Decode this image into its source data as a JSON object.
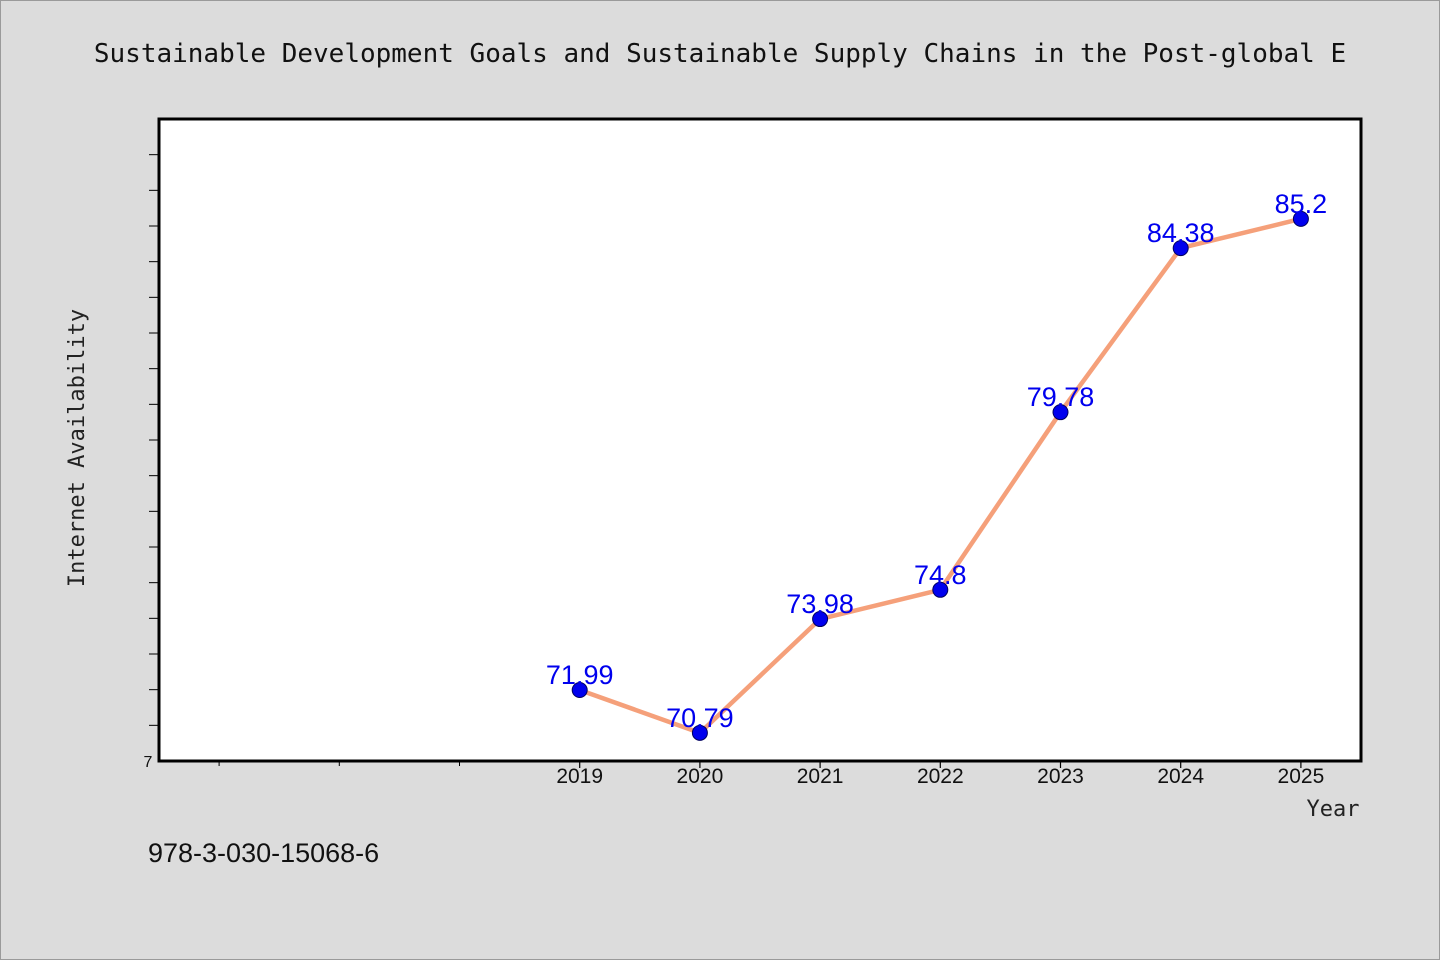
{
  "chart_data": {
    "type": "line",
    "title": "Sustainable Development Goals and Sustainable Supply Chains in the Post-global E",
    "xlabel": "Year",
    "ylabel": "Internet Availability",
    "ymin_label": "7",
    "categories": [
      "2019",
      "2020",
      "2021",
      "2022",
      "2023",
      "2024",
      "2025"
    ],
    "x_range": [
      2015.5,
      2025.5
    ],
    "ylim": [
      70.0,
      88.0
    ],
    "grid": false,
    "series": [
      {
        "values": [
          71.99,
          70.79,
          73.98,
          74.8,
          79.78,
          84.38,
          85.2
        ],
        "point_labels": [
          "71.99",
          "70.79",
          "73.98",
          "74.8",
          "79.78",
          "84.38",
          "85.2"
        ],
        "line_color": "#f5a07a",
        "marker_color": "#0000ee"
      }
    ]
  },
  "footer_text": "978-3-030-15068-6"
}
